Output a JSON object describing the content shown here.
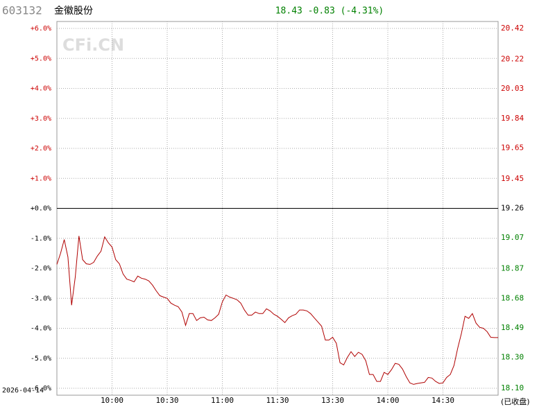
{
  "chart_data": {
    "type": "line",
    "code": "603132",
    "name": "金徽股份",
    "quote": "18.43 -0.83 (-4.31%)",
    "watermark": "CFi.CN",
    "date": "2026-04-14",
    "status": "(已收盘)",
    "up_color": "#cc0000",
    "down_color": "#008000",
    "flat_color": "#000000",
    "grid": true,
    "xlim": [
      0,
      240
    ],
    "xticks": [
      {
        "value": 30,
        "label": "10:00"
      },
      {
        "value": 60,
        "label": "10:30"
      },
      {
        "value": 90,
        "label": "11:00"
      },
      {
        "value": 120,
        "label": "11:30"
      },
      {
        "value": 150,
        "label": "13:30"
      },
      {
        "value": 180,
        "label": "14:00"
      },
      {
        "value": 210,
        "label": "14:30"
      }
    ],
    "ylim": [
      -6,
      6
    ],
    "yticks": [
      {
        "value": 6,
        "label": "+6.0%"
      },
      {
        "value": 5,
        "label": "+5.0%"
      },
      {
        "value": 4,
        "label": "+4.0%"
      },
      {
        "value": 3,
        "label": "+3.0%"
      },
      {
        "value": 2,
        "label": "+2.0%"
      },
      {
        "value": 1,
        "label": "+1.0%"
      },
      {
        "value": 0,
        "label": "+0.0%"
      },
      {
        "value": -1,
        "label": "-1.0%"
      },
      {
        "value": -2,
        "label": "-2.0%"
      },
      {
        "value": -3,
        "label": "-3.0%"
      },
      {
        "value": -4,
        "label": "-4.0%"
      },
      {
        "value": -5,
        "label": "-5.0%"
      },
      {
        "value": -6,
        "label": "-6.0%"
      }
    ],
    "y2lim": [
      18.1,
      20.42
    ],
    "y2ticks": [
      20.42,
      20.22,
      20.03,
      19.84,
      19.65,
      19.45,
      19.26,
      19.07,
      18.87,
      18.68,
      18.49,
      {
        "value": 18.3,
        "label": "18.30"
      },
      {
        "value": 18.1,
        "label": "18.10"
      }
    ],
    "x": [
      0,
      2,
      4,
      6,
      8,
      10,
      12,
      14,
      16,
      18,
      20,
      22,
      24,
      26,
      28,
      30,
      32,
      34,
      36,
      38,
      40,
      42,
      44,
      46,
      48,
      50,
      52,
      54,
      56,
      58,
      60,
      62,
      64,
      66,
      68,
      70,
      72,
      74,
      76,
      78,
      80,
      82,
      84,
      86,
      88,
      90,
      92,
      94,
      96,
      98,
      100,
      102,
      104,
      106,
      108,
      110,
      112,
      114,
      116,
      118,
      120,
      122,
      124,
      126,
      128,
      130,
      132,
      134,
      136,
      138,
      140,
      142,
      144,
      146,
      148,
      150,
      152,
      154,
      156,
      158,
      160,
      162,
      164,
      166,
      168,
      170,
      172,
      174,
      176,
      178,
      180,
      182,
      184,
      186,
      188,
      190,
      192,
      194,
      196,
      198,
      200,
      202,
      204,
      206,
      208,
      210,
      212,
      214,
      216,
      218,
      220,
      222,
      224,
      226,
      228,
      230,
      232,
      234,
      236,
      238,
      240
    ],
    "series": [
      {
        "color": "#b00000",
        "values": [
          -1.87,
          -1.5,
          -1.04,
          -1.62,
          -3.23,
          -2.29,
          -0.92,
          -1.71,
          -1.85,
          -1.87,
          -1.8,
          -1.59,
          -1.43,
          -0.95,
          -1.15,
          -1.29,
          -1.71,
          -1.85,
          -2.19,
          -2.36,
          -2.4,
          -2.45,
          -2.26,
          -2.33,
          -2.36,
          -2.42,
          -2.56,
          -2.75,
          -2.91,
          -2.96,
          -3.0,
          -3.16,
          -3.23,
          -3.28,
          -3.46,
          -3.9,
          -3.51,
          -3.51,
          -3.74,
          -3.65,
          -3.63,
          -3.72,
          -3.74,
          -3.65,
          -3.53,
          -3.12,
          -2.89,
          -2.96,
          -3.0,
          -3.05,
          -3.16,
          -3.39,
          -3.56,
          -3.56,
          -3.46,
          -3.51,
          -3.51,
          -3.35,
          -3.42,
          -3.53,
          -3.6,
          -3.7,
          -3.81,
          -3.65,
          -3.58,
          -3.53,
          -3.39,
          -3.39,
          -3.42,
          -3.51,
          -3.65,
          -3.79,
          -3.93,
          -4.39,
          -4.39,
          -4.3,
          -4.5,
          -5.15,
          -5.22,
          -4.97,
          -4.78,
          -4.94,
          -4.8,
          -4.87,
          -5.08,
          -5.54,
          -5.54,
          -5.77,
          -5.77,
          -5.47,
          -5.54,
          -5.38,
          -5.17,
          -5.2,
          -5.36,
          -5.61,
          -5.82,
          -5.87,
          -5.84,
          -5.82,
          -5.8,
          -5.64,
          -5.66,
          -5.77,
          -5.84,
          -5.82,
          -5.64,
          -5.54,
          -5.24,
          -4.67,
          -4.18,
          -3.6,
          -3.67,
          -3.51,
          -3.83,
          -3.97,
          -4.0,
          -4.11,
          -4.3,
          -4.31,
          -4.31
        ]
      }
    ]
  }
}
